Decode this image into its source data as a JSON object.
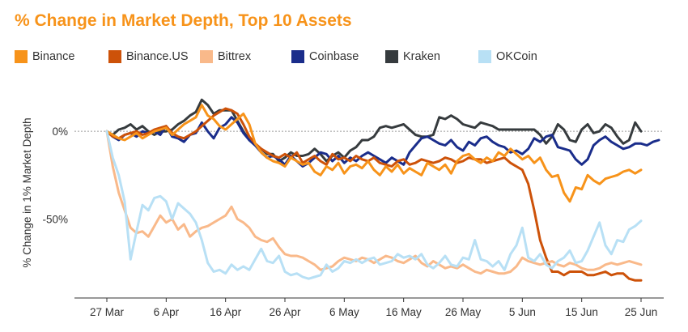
{
  "chart_data": {
    "type": "line",
    "title": "% Change in Market Depth, Top 10 Assets",
    "ylabel": "% Change in 1% Market Depth",
    "xlabel": "",
    "ylim": [
      -95,
      25
    ],
    "xlim": [
      0,
      90
    ],
    "x_ticks": [
      {
        "day": 0,
        "label": "27 Mar"
      },
      {
        "day": 10,
        "label": "6 Apr"
      },
      {
        "day": 20,
        "label": "16 Apr"
      },
      {
        "day": 30,
        "label": "26 Apr"
      },
      {
        "day": 40,
        "label": "6 May"
      },
      {
        "day": 50,
        "label": "16 May"
      },
      {
        "day": 60,
        "label": "26 May"
      },
      {
        "day": 70,
        "label": "5 Jun"
      },
      {
        "day": 80,
        "label": "15 Jun"
      },
      {
        "day": 90,
        "label": "25 Jun"
      }
    ],
    "y_ticks": [
      {
        "value": 0,
        "label": "0%"
      },
      {
        "value": -50,
        "label": "-50%"
      }
    ],
    "reference_line": 0,
    "series": [
      {
        "name": "Kraken",
        "color": "#363b3e",
        "x_start": 0,
        "values": [
          0,
          -2,
          1,
          2,
          4,
          1,
          3,
          0,
          -2,
          0,
          0,
          1,
          4,
          6,
          9,
          11,
          18,
          15,
          10,
          12,
          12,
          12,
          6,
          0,
          -5,
          -8,
          -10,
          -13,
          -13,
          -17,
          -15,
          -12,
          -14,
          -14,
          -13,
          -10,
          -13,
          -17,
          -14,
          -12,
          -15,
          -11,
          -9,
          -5,
          -5,
          -3,
          2,
          3,
          2,
          3,
          4,
          1,
          -2,
          -3,
          -3,
          -2,
          8,
          7,
          9,
          7,
          4,
          3,
          2,
          5,
          4,
          3,
          1,
          1,
          1,
          1,
          1,
          1,
          1,
          -2,
          -7,
          -3,
          4,
          1,
          -5,
          -6,
          1,
          4,
          -1,
          0,
          4,
          2,
          -3,
          -7,
          -5,
          5,
          0
        ]
      },
      {
        "name": "Coinbase",
        "color": "#1a2d8b",
        "x_start": 0,
        "values": [
          0,
          -3,
          -5,
          -2,
          -1,
          -3,
          0,
          -1,
          0,
          -2,
          3,
          -3,
          -4,
          -6,
          -2,
          -1,
          5,
          0,
          -4,
          2,
          4,
          8,
          5,
          -1,
          -5,
          -8,
          -12,
          -15,
          -14,
          -16,
          -19,
          -14,
          -17,
          -20,
          -18,
          -15,
          -12,
          -13,
          -17,
          -14,
          -18,
          -15,
          -17,
          -14,
          -12,
          -14,
          -16,
          -18,
          -15,
          -17,
          -19,
          -12,
          -8,
          -4,
          -3,
          -5,
          -7,
          -8,
          -5,
          -9,
          -11,
          -6,
          -8,
          -4,
          -3,
          -6,
          -8,
          -9,
          -12,
          -11,
          -13,
          -10,
          -4,
          -6,
          -3,
          -2,
          -9,
          -10,
          -11,
          -16,
          -19,
          -16,
          -8,
          -5,
          -3,
          -6,
          -8,
          -10,
          -9,
          -7,
          -7,
          -8,
          -6,
          -5
        ]
      },
      {
        "name": "Binance.US",
        "color": "#cd5209",
        "x_start": 0,
        "values": [
          0,
          -3,
          -4,
          -2,
          -1,
          0,
          -2,
          -1,
          1,
          2,
          3,
          -1,
          -3,
          -4,
          -2,
          0,
          3,
          6,
          9,
          11,
          13,
          12,
          10,
          4,
          -3,
          -7,
          -10,
          -12,
          -14,
          -15,
          -13,
          -15,
          -12,
          -18,
          -16,
          -14,
          -17,
          -19,
          -13,
          -16,
          -15,
          -17,
          -14,
          -16,
          -17,
          -15,
          -18,
          -19,
          -20,
          -17,
          -16,
          -19,
          -18,
          -16,
          -17,
          -18,
          -17,
          -15,
          -16,
          -18,
          -17,
          -15,
          -16,
          -16,
          -18,
          -17,
          -16,
          -15,
          -18,
          -20,
          -22,
          -30,
          -45,
          -62,
          -72,
          -80,
          -80,
          -82,
          -80,
          -80,
          -80,
          -82,
          -82,
          -81,
          -80,
          -82,
          -81,
          -81,
          -84,
          -85,
          -85
        ]
      },
      {
        "name": "Binance",
        "color": "#f7931a",
        "x_start": 0,
        "values": [
          0,
          -2,
          -4,
          -5,
          -3,
          -1,
          -4,
          -2,
          0,
          1,
          2,
          -2,
          1,
          4,
          6,
          8,
          15,
          9,
          7,
          3,
          1,
          4,
          7,
          10,
          4,
          -7,
          -12,
          -15,
          -17,
          -18,
          -20,
          -15,
          -17,
          -19,
          -18,
          -23,
          -25,
          -20,
          -22,
          -18,
          -24,
          -20,
          -19,
          -21,
          -17,
          -22,
          -25,
          -20,
          -23,
          -19,
          -24,
          -21,
          -23,
          -25,
          -18,
          -20,
          -22,
          -19,
          -24,
          -17,
          -14,
          -13,
          -16,
          -18,
          -15,
          -17,
          -12,
          -14,
          -10,
          -13,
          -16,
          -14,
          -18,
          -15,
          -22,
          -26,
          -25,
          -35,
          -40,
          -32,
          -33,
          -25,
          -28,
          -30,
          -27,
          -26,
          -25,
          -23,
          -22,
          -24,
          -22
        ]
      },
      {
        "name": "Bittrex",
        "color": "#f9b98a",
        "x_start": 0,
        "values": [
          0,
          -20,
          -35,
          -45,
          -55,
          -58,
          -57,
          -60,
          -54,
          -48,
          -52,
          -50,
          -56,
          -53,
          -60,
          -57,
          -55,
          -54,
          -52,
          -50,
          -48,
          -43,
          -50,
          -52,
          -55,
          -60,
          -62,
          -63,
          -61,
          -66,
          -70,
          -71,
          -71,
          -72,
          -74,
          -76,
          -79,
          -78,
          -77,
          -74,
          -72,
          -73,
          -74,
          -72,
          -73,
          -75,
          -73,
          -71,
          -72,
          -74,
          -75,
          -73,
          -71,
          -75,
          -77,
          -74,
          -76,
          -78,
          -77,
          -78,
          -76,
          -78,
          -80,
          -81,
          -79,
          -80,
          -81,
          -81,
          -80,
          -77,
          -72,
          -74,
          -75,
          -76,
          -75,
          -74,
          -76,
          -77,
          -75,
          -76,
          -78,
          -79,
          -79,
          -78,
          -76,
          -75,
          -76,
          -75,
          -74,
          -75,
          -76
        ]
      },
      {
        "name": "OKCoin",
        "color": "#b8e0f5",
        "x_start": 0,
        "values": [
          0,
          -15,
          -25,
          -40,
          -73,
          -57,
          -42,
          -45,
          -38,
          -37,
          -40,
          -50,
          -41,
          -44,
          -47,
          -52,
          -62,
          -75,
          -80,
          -79,
          -81,
          -76,
          -79,
          -77,
          -79,
          -73,
          -67,
          -74,
          -75,
          -71,
          -80,
          -82,
          -81,
          -83,
          -84,
          -83,
          -82,
          -76,
          -80,
          -78,
          -74,
          -75,
          -73,
          -75,
          -73,
          -72,
          -76,
          -75,
          -74,
          -70,
          -72,
          -71,
          -73,
          -70,
          -76,
          -78,
          -75,
          -71,
          -76,
          -77,
          -72,
          -73,
          -62,
          -73,
          -74,
          -77,
          -74,
          -79,
          -70,
          -65,
          -55,
          -72,
          -74,
          -70,
          -76,
          -78,
          -74,
          -72,
          -68,
          -75,
          -74,
          -68,
          -60,
          -52,
          -65,
          -70,
          -62,
          -63,
          -56,
          -54,
          -51
        ]
      }
    ]
  },
  "legend": [
    {
      "label": "Binance",
      "color": "#f7931a"
    },
    {
      "label": "Binance.US",
      "color": "#cd5209"
    },
    {
      "label": "Bittrex",
      "color": "#f9b98a"
    },
    {
      "label": "Coinbase",
      "color": "#1a2d8b"
    },
    {
      "label": "Kraken",
      "color": "#363b3e"
    },
    {
      "label": "OKCoin",
      "color": "#b8e0f5"
    }
  ]
}
